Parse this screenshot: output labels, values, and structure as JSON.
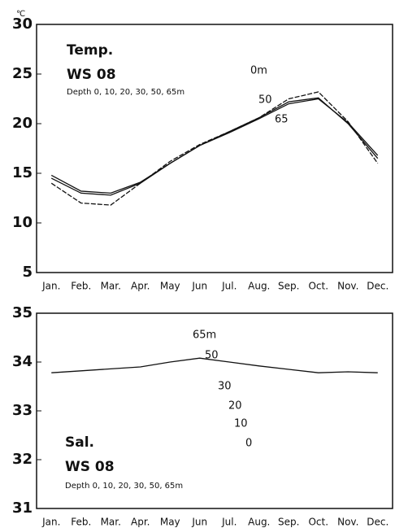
{
  "chart_data": [
    {
      "type": "line",
      "y_unit": "℃",
      "annotations": [
        "Temp.",
        "WS 08",
        "Depth 0, 10, 20, 30, 50, 65m"
      ],
      "categories": [
        "Jan.",
        "Feb.",
        "Mar.",
        "Apr.",
        "May",
        "Jun",
        "Jul.",
        "Aug.",
        "Sep.",
        "Oct.",
        "Nov.",
        "Dec."
      ],
      "series": [
        {
          "name": "0m",
          "color": "#111111",
          "values": [
            14,
            12,
            11.8,
            14,
            16.2,
            17.9,
            19.2,
            20.6,
            22.5,
            23.2,
            20.2,
            16
          ]
        },
        {
          "name": "50",
          "color": "#111111",
          "values": [
            14.5,
            13,
            12.8,
            14,
            16,
            17.8,
            19.2,
            20.6,
            22.2,
            22.6,
            20,
            16.5
          ]
        },
        {
          "name": "65",
          "color": "#111111",
          "values": [
            14.8,
            13.2,
            13,
            14.1,
            16,
            17.8,
            19.1,
            20.5,
            22,
            22.5,
            20.1,
            16.8
          ]
        }
      ],
      "ylim": [
        5,
        30
      ],
      "yticks": [
        5,
        10,
        15,
        20,
        25,
        30
      ]
    },
    {
      "type": "line",
      "annotations": [
        "Sal.",
        "WS 08",
        "Depth 0, 10, 20, 30, 50, 65m",
        "65m",
        "50",
        "30",
        "20",
        "10",
        "0"
      ],
      "categories": [
        "Jan.",
        "Feb.",
        "Mar.",
        "Apr.",
        "May",
        "Jun",
        "Jul.",
        "Aug.",
        "Sep.",
        "Oct.",
        "Nov.",
        "Dec."
      ],
      "series": [
        {
          "color": "#111111",
          "values": [
            33.78,
            33.82,
            33.86,
            33.9,
            34.0,
            34.08,
            34.0,
            33.92,
            33.85,
            33.78,
            33.8,
            33.78
          ]
        }
      ],
      "ylim": [
        31,
        35
      ],
      "yticks": [
        31,
        32,
        33,
        34,
        35
      ]
    }
  ]
}
